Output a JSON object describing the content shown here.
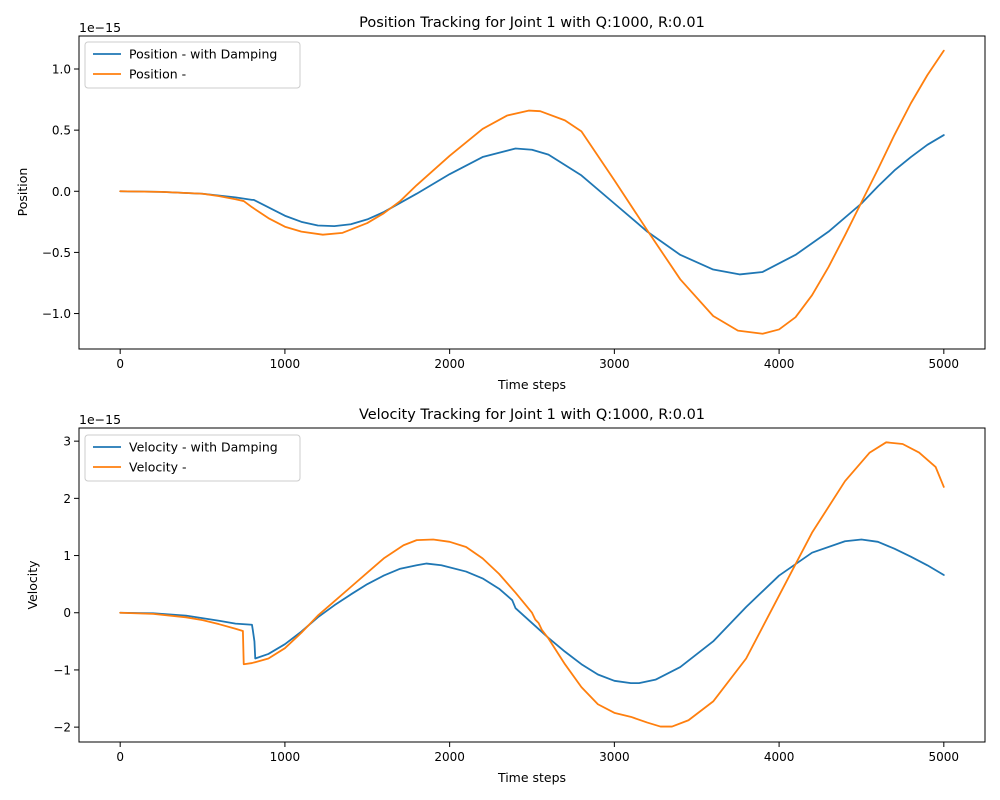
{
  "chart_data": [
    {
      "type": "line",
      "title": "Position Tracking for Joint 1 with Q:1000, R:0.01",
      "xlabel": "Time steps",
      "ylabel": "Position",
      "y_offset_text": "1e−15",
      "xlim": [
        -250,
        5250
      ],
      "ylim": [
        -1.29,
        1.27
      ],
      "xticks": [
        0,
        1000,
        2000,
        3000,
        4000,
        5000
      ],
      "xtick_labels": [
        "0",
        "1000",
        "2000",
        "3000",
        "4000",
        "5000"
      ],
      "yticks": [
        -1.0,
        -0.5,
        0.0,
        0.5,
        1.0
      ],
      "ytick_labels": [
        "−1.0",
        "−0.5",
        "0.0",
        "0.5",
        "1.0"
      ],
      "grid": false,
      "legend_position": "upper-left",
      "series": [
        {
          "name": "Position - with Damping",
          "color": "#1f77b4",
          "x": [
            0,
            250,
            500,
            700,
            800,
            810,
            1000,
            1100,
            1200,
            1300,
            1400,
            1500,
            1600,
            1800,
            2000,
            2200,
            2400,
            2500,
            2600,
            2800,
            3000,
            3200,
            3400,
            3600,
            3760,
            3900,
            4100,
            4300,
            4500,
            4600,
            4700,
            4800,
            4900,
            5000
          ],
          "values": [
            0.0,
            -0.005,
            -0.02,
            -0.05,
            -0.07,
            -0.07,
            -0.2,
            -0.25,
            -0.28,
            -0.285,
            -0.27,
            -0.23,
            -0.17,
            -0.02,
            0.14,
            0.28,
            0.35,
            0.34,
            0.3,
            0.13,
            -0.1,
            -0.33,
            -0.52,
            -0.64,
            -0.68,
            -0.66,
            -0.52,
            -0.33,
            -0.1,
            0.04,
            0.17,
            0.28,
            0.38,
            0.46
          ]
        },
        {
          "name": "Position -",
          "color": "#ff7f0e",
          "x": [
            0,
            250,
            500,
            600,
            700,
            750,
            800,
            900,
            1000,
            1100,
            1230,
            1350,
            1500,
            1600,
            1700,
            1800,
            2000,
            2200,
            2350,
            2480,
            2550,
            2700,
            2800,
            3000,
            3200,
            3400,
            3600,
            3750,
            3900,
            4000,
            4100,
            4200,
            4300,
            4400,
            4500,
            4600,
            4700,
            4800,
            4900,
            5000
          ],
          "values": [
            0.0,
            -0.005,
            -0.02,
            -0.04,
            -0.065,
            -0.08,
            -0.13,
            -0.22,
            -0.29,
            -0.33,
            -0.355,
            -0.34,
            -0.26,
            -0.18,
            -0.08,
            0.05,
            0.29,
            0.51,
            0.62,
            0.66,
            0.655,
            0.58,
            0.49,
            0.09,
            -0.32,
            -0.72,
            -1.02,
            -1.14,
            -1.165,
            -1.13,
            -1.03,
            -0.85,
            -0.62,
            -0.36,
            -0.09,
            0.18,
            0.46,
            0.72,
            0.95,
            1.15
          ]
        }
      ]
    },
    {
      "type": "line",
      "title": "Velocity Tracking for Joint 1 with Q:1000, R:0.01",
      "xlabel": "Time steps",
      "ylabel": "Velocity",
      "y_offset_text": "1e−15",
      "xlim": [
        -250,
        5250
      ],
      "ylim": [
        -2.26,
        3.23
      ],
      "xticks": [
        0,
        1000,
        2000,
        3000,
        4000,
        5000
      ],
      "xtick_labels": [
        "0",
        "1000",
        "2000",
        "3000",
        "4000",
        "5000"
      ],
      "yticks": [
        -2,
        -1,
        0,
        1,
        2,
        3
      ],
      "ytick_labels": [
        "−2",
        "−1",
        "0",
        "1",
        "2",
        "3"
      ],
      "grid": false,
      "legend_position": "upper-left",
      "series": [
        {
          "name": "Velocity - with Damping",
          "color": "#1f77b4",
          "x": [
            0,
            200,
            400,
            600,
            700,
            800,
            805,
            815,
            820,
            900,
            1000,
            1100,
            1200,
            1300,
            1400,
            1500,
            1600,
            1700,
            1800,
            1860,
            1950,
            2100,
            2200,
            2300,
            2380,
            2400,
            2500,
            2600,
            2700,
            2800,
            2900,
            3000,
            3100,
            3150,
            3250,
            3400,
            3600,
            3800,
            4000,
            4200,
            4400,
            4500,
            4600,
            4700,
            4800,
            4900,
            5000
          ],
          "values": [
            0.0,
            -0.01,
            -0.05,
            -0.14,
            -0.19,
            -0.21,
            -0.3,
            -0.5,
            -0.8,
            -0.72,
            -0.55,
            -0.33,
            -0.08,
            0.13,
            0.32,
            0.5,
            0.65,
            0.77,
            0.83,
            0.86,
            0.83,
            0.72,
            0.6,
            0.42,
            0.22,
            0.08,
            -0.18,
            -0.44,
            -0.68,
            -0.9,
            -1.08,
            -1.19,
            -1.23,
            -1.23,
            -1.17,
            -0.95,
            -0.5,
            0.1,
            0.65,
            1.05,
            1.25,
            1.28,
            1.24,
            1.12,
            0.98,
            0.83,
            0.66
          ]
        },
        {
          "name": "Velocity -",
          "color": "#ff7f0e",
          "x": [
            0,
            200,
            400,
            500,
            600,
            700,
            745,
            750,
            800,
            900,
            1000,
            1100,
            1200,
            1300,
            1400,
            1500,
            1600,
            1720,
            1800,
            1900,
            2000,
            2100,
            2200,
            2300,
            2400,
            2500,
            2520,
            2540,
            2560,
            2600,
            2700,
            2800,
            2900,
            3000,
            3100,
            3200,
            3280,
            3350,
            3450,
            3600,
            3800,
            4000,
            4200,
            4400,
            4550,
            4650,
            4750,
            4850,
            4950,
            5000
          ],
          "values": [
            0.0,
            -0.02,
            -0.08,
            -0.13,
            -0.2,
            -0.28,
            -0.32,
            -0.9,
            -0.88,
            -0.8,
            -0.62,
            -0.35,
            -0.05,
            0.2,
            0.45,
            0.7,
            0.95,
            1.18,
            1.27,
            1.28,
            1.24,
            1.15,
            0.95,
            0.68,
            0.35,
            0.0,
            -0.12,
            -0.18,
            -0.3,
            -0.45,
            -0.9,
            -1.3,
            -1.6,
            -1.75,
            -1.82,
            -1.92,
            -1.99,
            -1.99,
            -1.88,
            -1.55,
            -0.8,
            0.3,
            1.4,
            2.3,
            2.8,
            2.98,
            2.95,
            2.8,
            2.55,
            2.2
          ]
        }
      ]
    }
  ]
}
